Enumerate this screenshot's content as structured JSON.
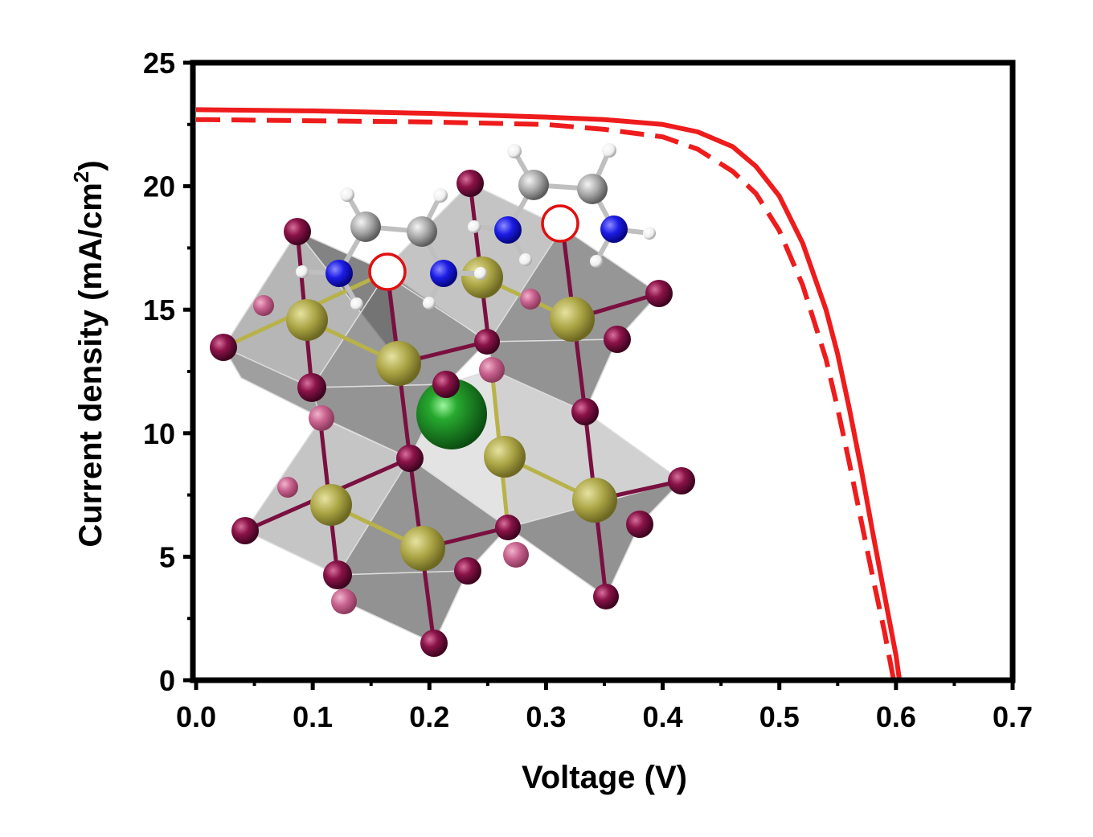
{
  "chart_data": {
    "type": "line",
    "xlabel": "Voltage (V)",
    "ylabel": {
      "prefix": "Current density (mA/cm",
      "superscript": "2",
      "suffix": ")"
    },
    "xlim": [
      0,
      0.7
    ],
    "ylim": [
      0,
      25
    ],
    "x_ticks": [
      "0.0",
      "0.1",
      "0.2",
      "0.3",
      "0.4",
      "0.5",
      "0.6",
      "0.7"
    ],
    "y_ticks": [
      "0",
      "5",
      "10",
      "15",
      "20",
      "25"
    ],
    "grid": false,
    "legend": "none",
    "series": [
      {
        "style": "solid",
        "color": "#ee1c1c",
        "points": [
          [
            0.0,
            23.1
          ],
          [
            0.1,
            23.05
          ],
          [
            0.2,
            22.95
          ],
          [
            0.3,
            22.8
          ],
          [
            0.35,
            22.7
          ],
          [
            0.4,
            22.5
          ],
          [
            0.43,
            22.2
          ],
          [
            0.46,
            21.6
          ],
          [
            0.48,
            20.8
          ],
          [
            0.5,
            19.6
          ],
          [
            0.52,
            17.7
          ],
          [
            0.54,
            15.0
          ],
          [
            0.55,
            13.2
          ],
          [
            0.56,
            11.0
          ],
          [
            0.57,
            8.6
          ],
          [
            0.58,
            6.0
          ],
          [
            0.59,
            3.5
          ],
          [
            0.6,
            1.0
          ],
          [
            0.603,
            0.0
          ]
        ]
      },
      {
        "style": "dashed",
        "color": "#ee1c1c",
        "points": [
          [
            0.0,
            22.7
          ],
          [
            0.1,
            22.65
          ],
          [
            0.2,
            22.6
          ],
          [
            0.3,
            22.5
          ],
          [
            0.35,
            22.3
          ],
          [
            0.4,
            22.0
          ],
          [
            0.43,
            21.5
          ],
          [
            0.46,
            20.6
          ],
          [
            0.48,
            19.7
          ],
          [
            0.5,
            18.2
          ],
          [
            0.52,
            16.0
          ],
          [
            0.54,
            13.0
          ],
          [
            0.55,
            11.0
          ],
          [
            0.56,
            8.8
          ],
          [
            0.57,
            6.5
          ],
          [
            0.58,
            4.2
          ],
          [
            0.59,
            2.0
          ],
          [
            0.598,
            0.0
          ]
        ]
      }
    ]
  },
  "inset": {
    "description_icon": "perovskite-crystal-structure-icon",
    "colors": {
      "octahedron": "#6e6e6e",
      "halide": "#7a0f3e",
      "metal": "#b8b24a",
      "cation": "#1f8f2a",
      "nitrogen": "#1a1aee",
      "carbon": "#a8a8a8",
      "hydrogen": "#f4f4f4",
      "vacancy": "#e01010"
    }
  }
}
